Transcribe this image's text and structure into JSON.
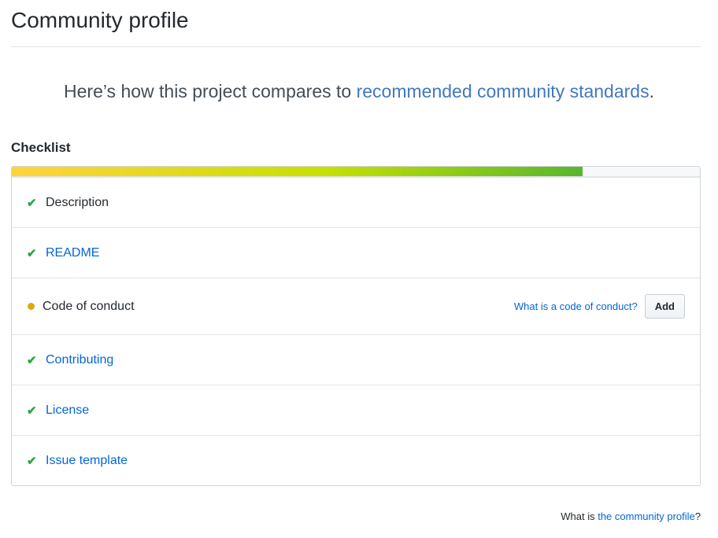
{
  "header": {
    "title": "Community profile"
  },
  "tagline": {
    "prefix": "Here’s how this project compares to ",
    "link": "recommended community standards",
    "suffix": "."
  },
  "checklist": {
    "heading": "Checklist",
    "progress_percent": 83,
    "items": [
      {
        "label": "Description",
        "status": "done",
        "is_link": false
      },
      {
        "label": "README",
        "status": "done",
        "is_link": true
      },
      {
        "label": "Code of conduct",
        "status": "missing",
        "is_link": false,
        "help": "What is a code of conduct?",
        "button": "Add"
      },
      {
        "label": "Contributing",
        "status": "done",
        "is_link": true
      },
      {
        "label": "License",
        "status": "done",
        "is_link": true
      },
      {
        "label": "Issue template",
        "status": "done",
        "is_link": true
      }
    ]
  },
  "footer": {
    "prefix": "What is ",
    "link": "the community profile",
    "suffix": "?"
  },
  "colors": {
    "check": "#28a745",
    "pending": "#dbab09",
    "link": "#0366d6"
  },
  "icons": {
    "done": "check-icon",
    "missing": "dot-icon"
  }
}
